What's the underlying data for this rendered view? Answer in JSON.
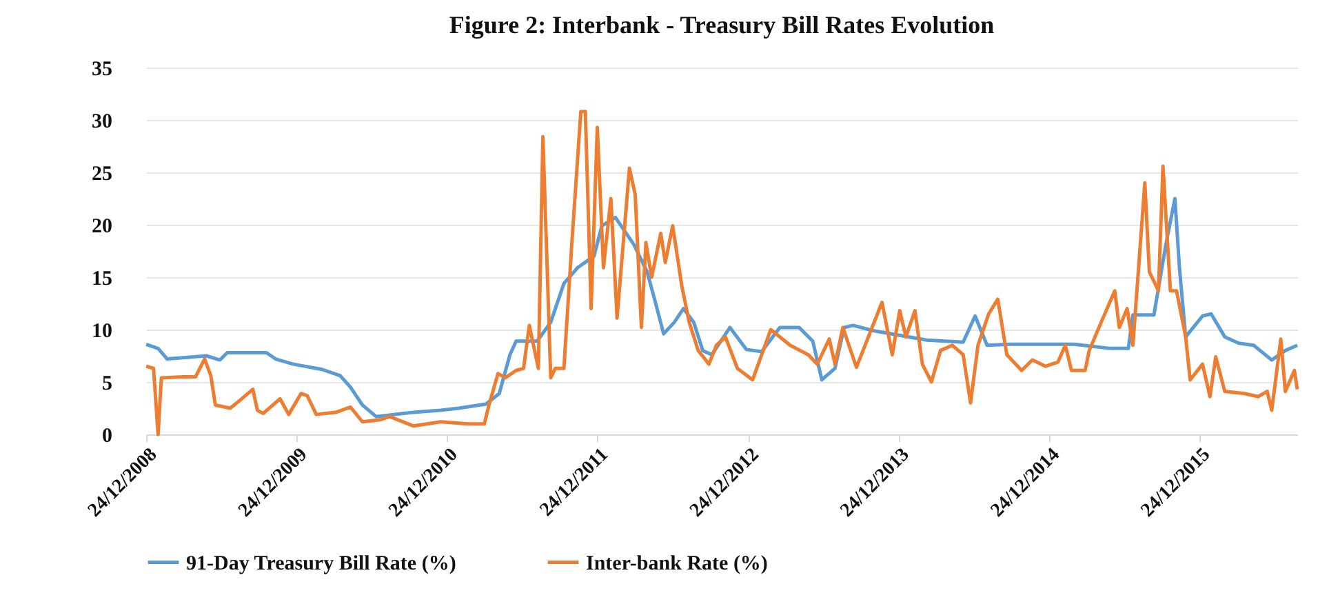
{
  "chart_data": {
    "type": "line",
    "title": "Figure 2: Interbank - Treasury Bill Rates Evolution",
    "xlim": [
      "2008-12-24",
      "2016-08-18"
    ],
    "xticks": [
      {
        "value": "2008-12-24",
        "label": "24/12/2008"
      },
      {
        "value": "2009-12-24",
        "label": "24/12/2009"
      },
      {
        "value": "2010-12-24",
        "label": "24/12/2010"
      },
      {
        "value": "2011-12-24",
        "label": "24/12/2011"
      },
      {
        "value": "2012-12-24",
        "label": "24/12/2012"
      },
      {
        "value": "2013-12-24",
        "label": "24/12/2013"
      },
      {
        "value": "2014-12-24",
        "label": "24/12/2014"
      },
      {
        "value": "2015-12-24",
        "label": "24/12/2015"
      }
    ],
    "ylim": [
      0,
      35
    ],
    "yticks": [
      0,
      5,
      10,
      15,
      20,
      25,
      30,
      35
    ],
    "grid": "y",
    "legend": "bottom",
    "line_style": "solid",
    "series": [
      {
        "name": "91-Day Treasury Bill Rate (%)",
        "color": "#5b9bd5",
        "x": [
          "2008-12-24",
          "2009-01-22",
          "2009-02-13",
          "2009-05-19",
          "2009-06-21",
          "2009-07-09",
          "2009-10-12",
          "2009-11-03",
          "2009-12-16",
          "2010-02-24",
          "2010-04-09",
          "2010-05-04",
          "2010-06-02",
          "2010-07-05",
          "2010-08-18",
          "2010-10-04",
          "2010-12-09",
          "2011-01-22",
          "2011-03-29",
          "2011-04-30",
          "2011-05-26",
          "2011-06-10",
          "2011-07-31",
          "2011-09-02",
          "2011-10-04",
          "2011-11-06",
          "2011-12-16",
          "2012-01-04",
          "2012-02-06",
          "2012-03-22",
          "2012-04-23",
          "2012-05-11",
          "2012-06-02",
          "2012-06-28",
          "2012-07-20",
          "2012-08-14",
          "2012-09-05",
          "2012-09-27",
          "2012-11-10",
          "2012-12-20",
          "2013-01-26",
          "2013-03-11",
          "2013-04-27",
          "2013-05-30",
          "2013-06-21",
          "2013-07-23",
          "2013-08-14",
          "2013-09-05",
          "2013-10-23",
          "2013-12-05",
          "2014-03-03",
          "2014-05-30",
          "2014-06-28",
          "2014-07-27",
          "2014-09-20",
          "2014-11-25",
          "2015-02-24",
          "2015-05-22",
          "2015-07-05",
          "2015-07-16",
          "2015-09-05",
          "2015-10-04",
          "2015-10-26",
          "2015-11-06",
          "2015-11-21",
          "2016-01-01",
          "2016-01-22",
          "2016-02-24",
          "2016-03-29",
          "2016-05-04",
          "2016-06-17",
          "2016-07-20",
          "2016-08-18"
        ],
        "values": [
          8.6,
          8.2,
          7.2,
          7.5,
          7.1,
          7.8,
          7.8,
          7.2,
          6.7,
          6.2,
          5.6,
          4.5,
          2.8,
          1.7,
          1.9,
          2.1,
          2.3,
          2.5,
          2.9,
          3.9,
          7.6,
          8.9,
          8.9,
          10.7,
          14.4,
          15.9,
          17.0,
          19.9,
          20.7,
          18.1,
          15.5,
          12.9,
          9.6,
          10.7,
          12.0,
          10.7,
          8.0,
          7.6,
          10.2,
          8.1,
          7.9,
          10.2,
          10.2,
          8.9,
          5.2,
          6.3,
          10.2,
          10.4,
          9.9,
          9.6,
          9.0,
          8.8,
          11.3,
          8.5,
          8.6,
          8.6,
          8.6,
          8.2,
          8.2,
          11.4,
          11.4,
          18.1,
          22.5,
          15.9,
          9.3,
          11.3,
          11.5,
          9.3,
          8.7,
          8.5,
          7.1,
          8.0,
          8.5
        ]
      },
      {
        "name": "Inter-bank Rate (%)",
        "color": "#ed7d31",
        "x": [
          "2008-12-24",
          "2009-01-11",
          "2009-01-22",
          "2009-01-30",
          "2009-03-25",
          "2009-04-23",
          "2009-05-15",
          "2009-05-30",
          "2009-06-10",
          "2009-07-16",
          "2009-08-07",
          "2009-09-09",
          "2009-09-20",
          "2009-10-04",
          "2009-11-14",
          "2009-12-05",
          "2010-01-04",
          "2010-01-19",
          "2010-02-10",
          "2010-03-29",
          "2010-04-12",
          "2010-05-04",
          "2010-06-02",
          "2010-07-16",
          "2010-08-07",
          "2010-10-04",
          "2010-12-09",
          "2011-02-13",
          "2011-03-25",
          "2011-04-05",
          "2011-04-27",
          "2011-05-15",
          "2011-06-10",
          "2011-06-28",
          "2011-07-12",
          "2011-08-03",
          "2011-08-14",
          "2011-09-02",
          "2011-09-13",
          "2011-10-04",
          "2011-10-23",
          "2011-11-14",
          "2011-11-25",
          "2011-12-09",
          "2011-12-24",
          "2012-01-08",
          "2012-01-26",
          "2012-02-10",
          "2012-03-11",
          "2012-03-25",
          "2012-04-09",
          "2012-04-20",
          "2012-05-04",
          "2012-05-26",
          "2012-06-06",
          "2012-06-24",
          "2012-07-16",
          "2012-08-03",
          "2012-08-25",
          "2012-09-20",
          "2012-10-08",
          "2012-10-30",
          "2012-11-28",
          "2013-01-04",
          "2013-02-17",
          "2013-04-05",
          "2013-05-19",
          "2013-06-10",
          "2013-07-09",
          "2013-07-23",
          "2013-08-11",
          "2013-09-13",
          "2013-11-14",
          "2013-12-09",
          "2013-12-27",
          "2014-01-11",
          "2014-02-02",
          "2014-02-20",
          "2014-03-14",
          "2014-04-05",
          "2014-05-04",
          "2014-05-30",
          "2014-06-17",
          "2014-07-05",
          "2014-07-31",
          "2014-08-22",
          "2014-09-13",
          "2014-10-19",
          "2014-11-14",
          "2014-12-16",
          "2015-01-15",
          "2015-02-02",
          "2015-02-17",
          "2015-03-22",
          "2015-04-01",
          "2015-04-30",
          "2015-06-02",
          "2015-06-13",
          "2015-07-02",
          "2015-07-16",
          "2015-08-14",
          "2015-08-25",
          "2015-09-16",
          "2015-09-27",
          "2015-10-15",
          "2015-10-30",
          "2015-11-21",
          "2015-12-02",
          "2016-01-01",
          "2016-01-19",
          "2016-02-02",
          "2016-02-24",
          "2016-04-12",
          "2016-05-15",
          "2016-06-06",
          "2016-06-17",
          "2016-07-09",
          "2016-07-20",
          "2016-08-11",
          "2016-08-18"
        ],
        "values": [
          6.5,
          6.3,
          0.0,
          5.4,
          5.5,
          5.5,
          7.2,
          5.6,
          2.8,
          2.5,
          3.2,
          4.3,
          2.3,
          2.0,
          3.4,
          1.9,
          3.9,
          3.7,
          1.9,
          2.1,
          2.3,
          2.6,
          1.2,
          1.4,
          1.7,
          0.8,
          1.2,
          1.0,
          1.0,
          2.8,
          5.8,
          5.4,
          6.1,
          6.3,
          10.4,
          6.3,
          28.4,
          5.4,
          6.3,
          6.3,
          18.1,
          30.8,
          30.8,
          12.0,
          29.3,
          15.9,
          22.5,
          11.1,
          25.4,
          22.9,
          10.2,
          18.3,
          15.0,
          19.2,
          16.4,
          19.9,
          14.2,
          10.7,
          8.0,
          6.7,
          8.5,
          9.3,
          6.3,
          5.2,
          10.0,
          8.5,
          7.6,
          6.7,
          9.1,
          6.7,
          10.2,
          6.4,
          12.6,
          7.6,
          11.8,
          9.3,
          11.8,
          6.7,
          5.0,
          8.0,
          8.5,
          7.6,
          3.0,
          8.5,
          11.5,
          12.9,
          7.6,
          6.1,
          7.1,
          6.5,
          6.9,
          8.5,
          6.1,
          6.1,
          8.0,
          10.7,
          13.7,
          10.2,
          12.0,
          8.5,
          24.0,
          15.5,
          13.7,
          25.6,
          13.7,
          13.7,
          9.3,
          5.2,
          6.7,
          3.6,
          7.4,
          4.1,
          3.9,
          3.6,
          4.1,
          2.3,
          9.1,
          4.1,
          6.1,
          4.3
        ]
      }
    ]
  }
}
